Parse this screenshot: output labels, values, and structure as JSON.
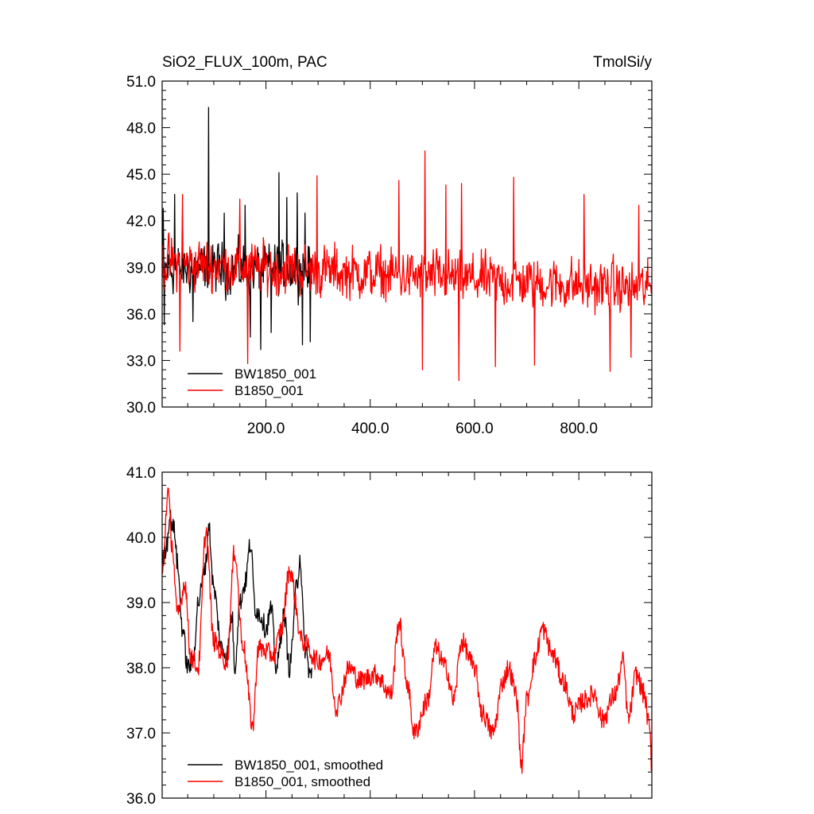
{
  "chart_data": [
    {
      "type": "line",
      "title": "SiO2_FLUX_100m, PAC",
      "units": "TmolSi/y",
      "xlim": [
        1,
        940
      ],
      "ylim": [
        30.0,
        51.0
      ],
      "x_ticks": [
        200,
        400,
        600,
        800
      ],
      "x_tick_labels": [
        "200.0",
        "400.0",
        "600.0",
        "800.0"
      ],
      "y_ticks": [
        30,
        33,
        36,
        39,
        42,
        45,
        48,
        51
      ],
      "y_tick_labels": [
        "30.0",
        "33.0",
        "36.0",
        "39.0",
        "42.0",
        "45.0",
        "48.0",
        "51.0"
      ],
      "legend_position": "bottom-left",
      "series": [
        {
          "name": "BW1850_001",
          "color": "#000000",
          "x_range": [
            1,
            288
          ],
          "mean": 38.9,
          "amplitude": 2.6,
          "peaks": [
            [
              3,
              42.8
            ],
            [
              25,
              43.7
            ],
            [
              90,
              49.3
            ],
            [
              120,
              42.5
            ],
            [
              160,
              43.0
            ],
            [
              225,
              45.1
            ],
            [
              240,
              43.5
            ],
            [
              260,
              43.8
            ],
            [
              275,
              42.5
            ]
          ],
          "troughs": [
            [
              5,
              35.3
            ],
            [
              60,
              35.5
            ],
            [
              170,
              34.5
            ],
            [
              190,
              33.7
            ],
            [
              210,
              34.8
            ],
            [
              270,
              34.0
            ],
            [
              285,
              34.2
            ]
          ]
        },
        {
          "name": "B1850_001",
          "color": "#ff0000",
          "x_range": [
            1,
            940
          ],
          "mean_start": 39.3,
          "mean_end": 37.6,
          "amplitude": 2.7,
          "peaks": [
            [
              40,
              43.7
            ],
            [
              150,
              43.4
            ],
            [
              298,
              44.9
            ],
            [
              455,
              44.6
            ],
            [
              505,
              46.5
            ],
            [
              545,
              44.3
            ],
            [
              575,
              44.4
            ],
            [
              675,
              44.8
            ],
            [
              810,
              43.7
            ],
            [
              915,
              43.0
            ]
          ],
          "troughs": [
            [
              35,
              33.6
            ],
            [
              165,
              32.8
            ],
            [
              500,
              32.4
            ],
            [
              570,
              31.7
            ],
            [
              640,
              32.6
            ],
            [
              715,
              32.7
            ],
            [
              860,
              32.3
            ],
            [
              900,
              33.2
            ]
          ]
        }
      ]
    },
    {
      "type": "line",
      "xlim": [
        1,
        940
      ],
      "ylim": [
        36.0,
        41.0
      ],
      "x_ticks": [
        200,
        400,
        600,
        800
      ],
      "y_ticks": [
        36,
        37,
        38,
        39,
        40,
        41
      ],
      "y_tick_labels": [
        "36.0",
        "37.0",
        "38.0",
        "39.0",
        "40.0",
        "41.0"
      ],
      "legend_position": "bottom-left",
      "series": [
        {
          "name": "BW1850_001, smoothed",
          "color": "#000000",
          "x_range": [
            1,
            288
          ],
          "anchors": [
            [
              1,
              39.6
            ],
            [
              10,
              39.9
            ],
            [
              15,
              40.3
            ],
            [
              25,
              40.1
            ],
            [
              30,
              39.6
            ],
            [
              40,
              38.6
            ],
            [
              50,
              38.0
            ],
            [
              60,
              38.1
            ],
            [
              70,
              39.0
            ],
            [
              85,
              39.6
            ],
            [
              90,
              40.2
            ],
            [
              100,
              39.2
            ],
            [
              115,
              38.3
            ],
            [
              125,
              38.2
            ],
            [
              135,
              38.8
            ],
            [
              140,
              38.0
            ],
            [
              150,
              39.0
            ],
            [
              160,
              39.3
            ],
            [
              170,
              39.9
            ],
            [
              180,
              38.9
            ],
            [
              190,
              38.8
            ],
            [
              200,
              38.6
            ],
            [
              210,
              38.9
            ],
            [
              220,
              38.0
            ],
            [
              235,
              38.8
            ],
            [
              245,
              38.0
            ],
            [
              260,
              39.3
            ],
            [
              265,
              39.7
            ],
            [
              275,
              38.3
            ],
            [
              285,
              37.9
            ]
          ]
        },
        {
          "name": "B1850_001, smoothed",
          "color": "#ff0000",
          "x_range": [
            1,
            940
          ],
          "anchors": [
            [
              1,
              39.4
            ],
            [
              12,
              40.7
            ],
            [
              20,
              39.9
            ],
            [
              30,
              38.8
            ],
            [
              45,
              39.3
            ],
            [
              55,
              38.2
            ],
            [
              70,
              38.0
            ],
            [
              85,
              40.1
            ],
            [
              100,
              38.4
            ],
            [
              125,
              38.1
            ],
            [
              140,
              39.8
            ],
            [
              155,
              38.4
            ],
            [
              175,
              37.1
            ],
            [
              185,
              38.3
            ],
            [
              215,
              38.2
            ],
            [
              230,
              38.6
            ],
            [
              245,
              39.5
            ],
            [
              270,
              38.4
            ],
            [
              300,
              38.1
            ],
            [
              320,
              38.2
            ],
            [
              335,
              37.4
            ],
            [
              360,
              38.0
            ],
            [
              380,
              37.8
            ],
            [
              410,
              37.9
            ],
            [
              440,
              37.6
            ],
            [
              455,
              38.7
            ],
            [
              470,
              37.8
            ],
            [
              485,
              37.0
            ],
            [
              510,
              37.5
            ],
            [
              525,
              38.3
            ],
            [
              545,
              38.0
            ],
            [
              560,
              37.5
            ],
            [
              575,
              38.4
            ],
            [
              600,
              38.0
            ],
            [
              615,
              37.3
            ],
            [
              635,
              37.0
            ],
            [
              655,
              37.8
            ],
            [
              665,
              38.0
            ],
            [
              680,
              37.6
            ],
            [
              690,
              36.5
            ],
            [
              700,
              37.5
            ],
            [
              715,
              38.1
            ],
            [
              730,
              38.6
            ],
            [
              750,
              38.2
            ],
            [
              770,
              37.8
            ],
            [
              790,
              37.3
            ],
            [
              810,
              37.5
            ],
            [
              830,
              37.6
            ],
            [
              845,
              37.2
            ],
            [
              870,
              37.6
            ],
            [
              885,
              38.1
            ],
            [
              895,
              37.2
            ],
            [
              910,
              37.9
            ],
            [
              925,
              37.6
            ],
            [
              935,
              37.1
            ],
            [
              940,
              36.5
            ]
          ]
        }
      ]
    }
  ]
}
